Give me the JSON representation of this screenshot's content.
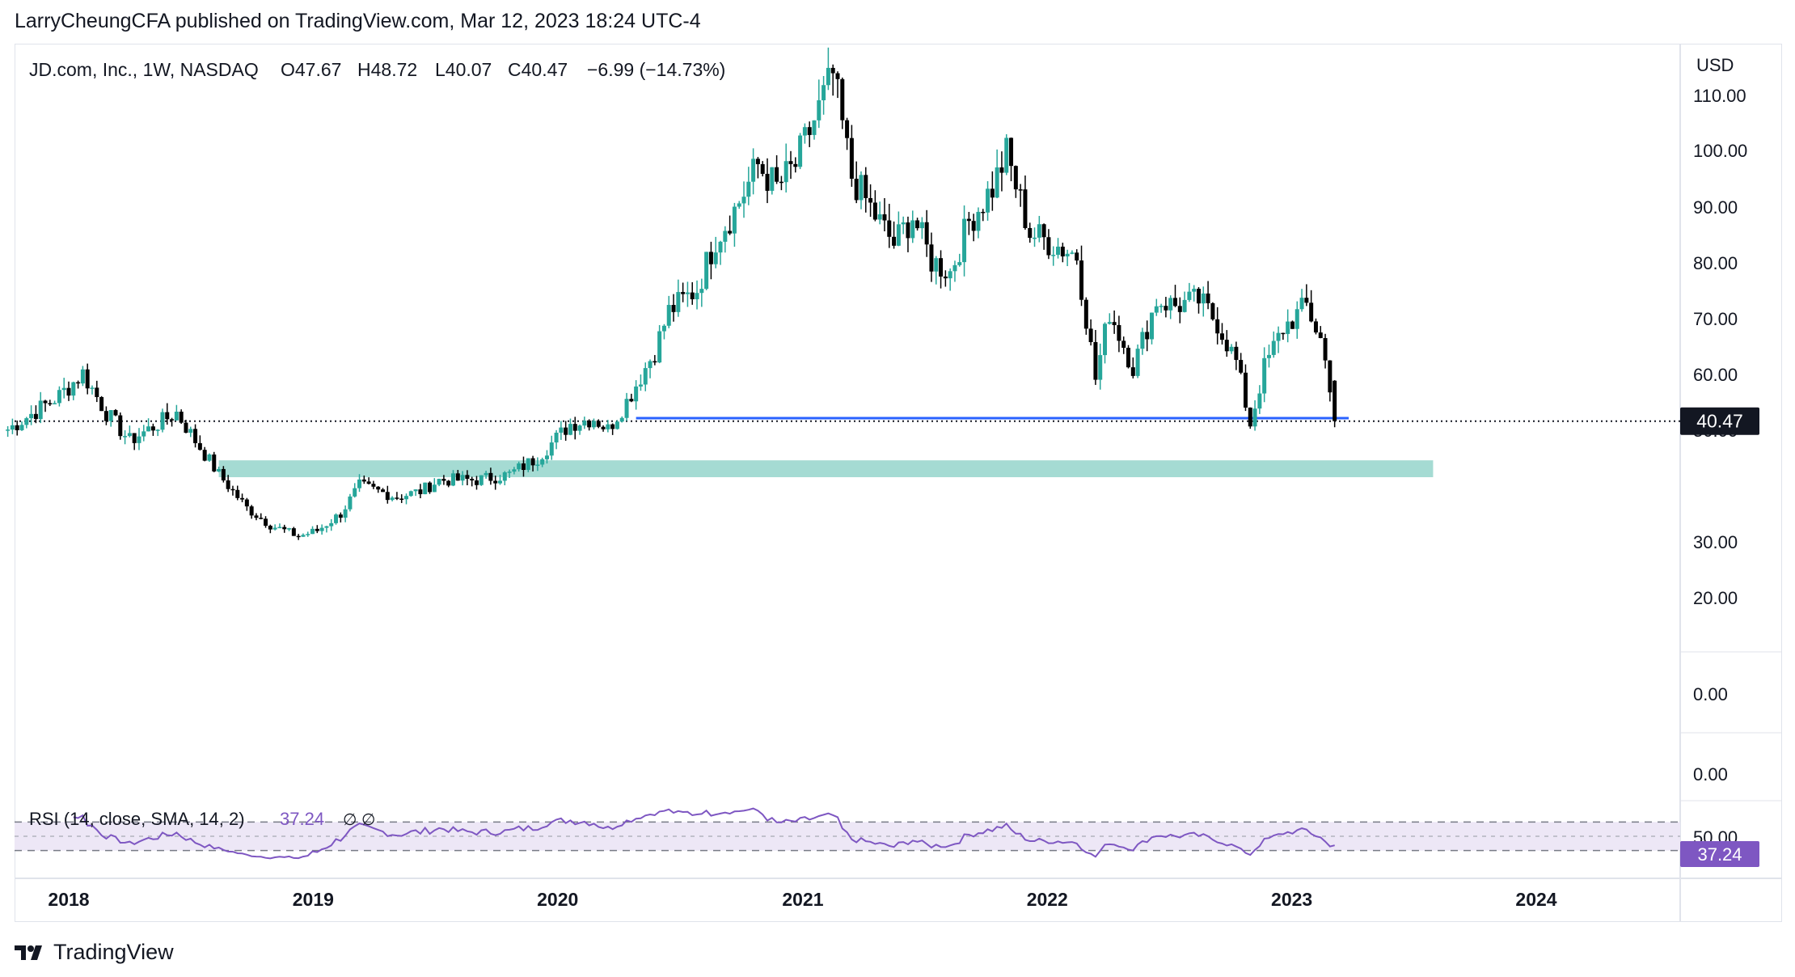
{
  "header": {
    "text": "LarryCheungCFA published on TradingView.com, Mar 12, 2023 18:24 UTC-4"
  },
  "legend": {
    "symbol": "JD.com, Inc., 1W, NASDAQ",
    "open": "O47.67",
    "high": "H48.72",
    "low": "L40.07",
    "close": "C40.47",
    "change": "−6.99 (−14.73%)"
  },
  "price_axis": {
    "currency": "USD",
    "ticks": [
      "110.00",
      "100.00",
      "90.00",
      "80.00",
      "70.00",
      "60.00",
      "50.00",
      "30.00",
      "20.00",
      "0.00",
      "0.00"
    ],
    "last_price_label": "40.47"
  },
  "rsi": {
    "label": "RSI (14, close, SMA, 14, 2)",
    "value": "37.24",
    "extra": "∅  ∅",
    "axis_tick": "50.00",
    "value_label": "37.24"
  },
  "time_axis": {
    "labels": [
      "2018",
      "2019",
      "2020",
      "2021",
      "2022",
      "2023",
      "2024"
    ]
  },
  "footer": {
    "brand": "TradingView"
  },
  "colors": {
    "up": "#26a69a",
    "down": "#000000",
    "rsi_line": "#7e57c2",
    "rsi_band": "#ede7f6",
    "support_zone": "#a5dbd3",
    "support_line": "#2962ff"
  },
  "chart_data": {
    "type": "candlestick",
    "title": "JD.com, Inc., 1W, NASDAQ",
    "ylabel": "USD",
    "ylim": [
      17,
      112
    ],
    "x_range": [
      "2017-09-25",
      "2024-04-01"
    ],
    "series": [
      {
        "name": "JD.com, Inc.",
        "keypoints": [
          [
            "2017-10-02",
            39
          ],
          [
            "2017-12-18",
            45
          ],
          [
            "2018-01-22",
            49
          ],
          [
            "2018-02-26",
            42
          ],
          [
            "2018-04-02",
            37
          ],
          [
            "2018-06-11",
            42
          ],
          [
            "2018-07-09",
            37
          ],
          [
            "2018-08-13",
            31
          ],
          [
            "2018-09-24",
            25
          ],
          [
            "2018-10-29",
            22
          ],
          [
            "2018-12-10",
            20
          ],
          [
            "2019-01-07",
            21
          ],
          [
            "2019-02-11",
            24
          ],
          [
            "2019-03-11",
            29
          ],
          [
            "2019-05-06",
            27
          ],
          [
            "2019-06-10",
            28
          ],
          [
            "2019-07-08",
            30
          ],
          [
            "2019-09-02",
            30
          ],
          [
            "2019-10-21",
            31
          ],
          [
            "2019-12-02",
            34
          ],
          [
            "2020-01-20",
            40
          ],
          [
            "2020-02-24",
            41
          ],
          [
            "2020-03-16",
            39
          ],
          [
            "2020-04-13",
            44
          ],
          [
            "2020-05-25",
            53
          ],
          [
            "2020-06-15",
            60
          ],
          [
            "2020-07-27",
            64
          ],
          [
            "2020-08-24",
            73
          ],
          [
            "2020-09-21",
            78
          ],
          [
            "2020-10-26",
            86
          ],
          [
            "2020-11-23",
            82
          ],
          [
            "2020-12-21",
            86
          ],
          [
            "2021-02-15",
            102
          ],
          [
            "2021-03-15",
            84
          ],
          [
            "2021-04-19",
            77
          ],
          [
            "2021-05-17",
            72
          ],
          [
            "2021-06-14",
            77
          ],
          [
            "2021-07-12",
            69
          ],
          [
            "2021-08-09",
            67
          ],
          [
            "2021-09-06",
            76
          ],
          [
            "2021-10-11",
            82
          ],
          [
            "2021-11-01",
            88
          ],
          [
            "2021-12-06",
            74
          ],
          [
            "2022-01-10",
            72
          ],
          [
            "2022-02-14",
            70
          ],
          [
            "2022-03-14",
            48
          ],
          [
            "2022-04-04",
            60
          ],
          [
            "2022-05-09",
            50
          ],
          [
            "2022-06-13",
            62
          ],
          [
            "2022-07-11",
            61
          ],
          [
            "2022-08-15",
            62
          ],
          [
            "2022-09-12",
            58
          ],
          [
            "2022-10-10",
            51
          ],
          [
            "2022-10-31",
            40
          ],
          [
            "2022-11-21",
            50
          ],
          [
            "2022-12-19",
            57
          ],
          [
            "2023-01-23",
            61
          ],
          [
            "2023-02-13",
            55
          ],
          [
            "2023-02-27",
            47
          ],
          [
            "2023-03-06",
            40.47
          ]
        ]
      }
    ],
    "support_line": {
      "price": 41,
      "from": "2020-04-27",
      "to": "2023-03-27"
    },
    "support_zone": {
      "low": 30.5,
      "high": 33.5,
      "from": "2018-08-13",
      "to": "2023-07-31"
    },
    "rsi": {
      "period": 14,
      "last": 37.24,
      "upper_band": 70,
      "lower_band": 30,
      "ylim": [
        0,
        100
      ]
    },
    "grid": false
  }
}
